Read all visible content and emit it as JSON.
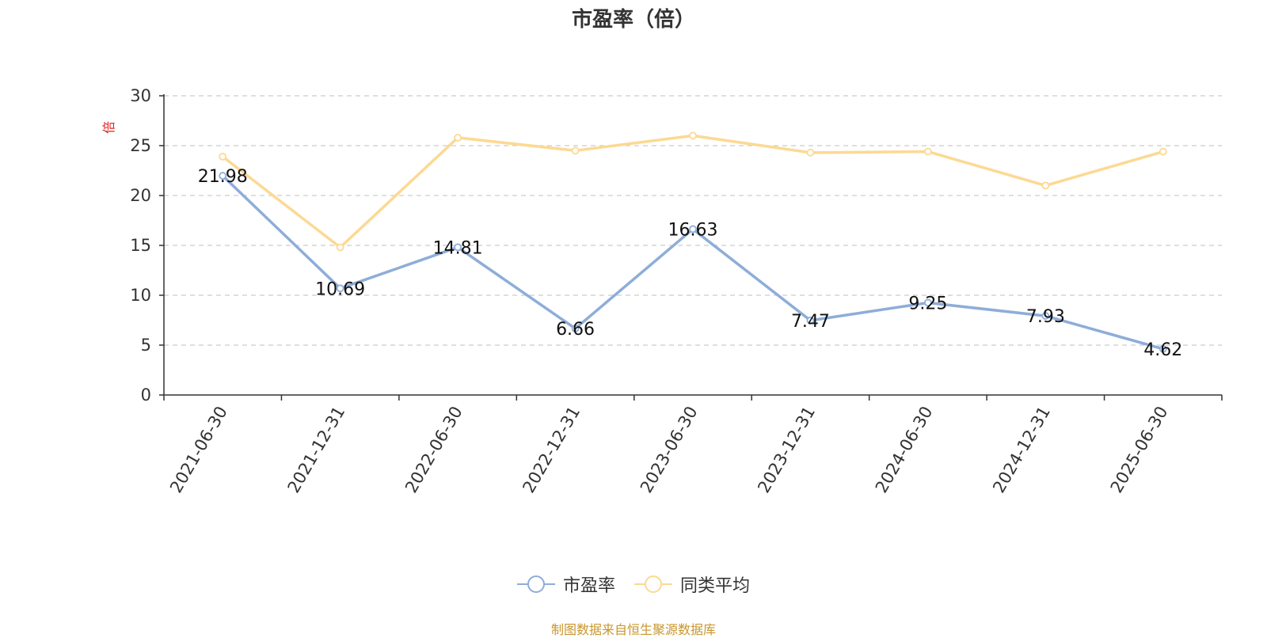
{
  "chart_data": {
    "type": "line",
    "title": "市盈率（倍）",
    "ylabel": "倍",
    "ylim": [
      0,
      30
    ],
    "yticks": [
      0,
      5,
      10,
      15,
      20,
      25,
      30
    ],
    "grid": true,
    "legend_position": "bottom-center",
    "categories": [
      "2021-06-30",
      "2021-12-31",
      "2022-06-30",
      "2022-12-31",
      "2023-06-30",
      "2023-12-31",
      "2024-06-30",
      "2024-12-31",
      "2025-06-30"
    ],
    "series": [
      {
        "name": "市盈率",
        "color": "#8eadd8",
        "values": [
          21.98,
          10.69,
          14.81,
          6.66,
          16.63,
          7.47,
          9.25,
          7.93,
          4.62
        ],
        "show_labels": true
      },
      {
        "name": "同类平均",
        "color": "#fcd993",
        "values": [
          23.9,
          14.8,
          25.8,
          24.5,
          26.0,
          24.3,
          24.4,
          21.0,
          24.4
        ],
        "show_labels": false
      }
    ]
  },
  "footer": {
    "source_text": "制图数据来自恒生聚源数据库"
  },
  "colors": {
    "axis": "#333333",
    "grid": "#cccccc",
    "ylabel": "#e02020",
    "source": "#c8962e"
  }
}
